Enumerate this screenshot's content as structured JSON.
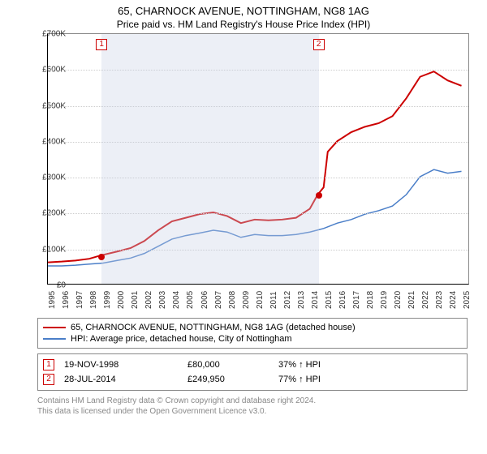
{
  "title": "65, CHARNOCK AVENUE, NOTTINGHAM, NG8 1AG",
  "subtitle": "Price paid vs. HM Land Registry's House Price Index (HPI)",
  "chart": {
    "type": "line",
    "x_years": [
      1995,
      1996,
      1997,
      1998,
      1999,
      2000,
      2001,
      2002,
      2003,
      2004,
      2005,
      2006,
      2007,
      2008,
      2009,
      2010,
      2011,
      2012,
      2013,
      2014,
      2015,
      2016,
      2017,
      2018,
      2019,
      2020,
      2021,
      2022,
      2023,
      2024,
      2025
    ],
    "xlim": [
      1995,
      2025.5
    ],
    "ylim": [
      0,
      700000
    ],
    "ytick_step": 100000,
    "ytick_labels": [
      "£0",
      "£100K",
      "£200K",
      "£300K",
      "£400K",
      "£500K",
      "£600K",
      "£700K"
    ],
    "background_color": "#ffffff",
    "grid_color": "#cccccc",
    "series": [
      {
        "name": "price_paid",
        "label": "65, CHARNOCK AVENUE, NOTTINGHAM, NG8 1AG (detached house)",
        "color": "#cc0000",
        "line_width": 2,
        "points": [
          [
            1995,
            60000
          ],
          [
            1996,
            62000
          ],
          [
            1997,
            65000
          ],
          [
            1998,
            70000
          ],
          [
            1998.88,
            80000
          ],
          [
            2000,
            90000
          ],
          [
            2001,
            100000
          ],
          [
            2002,
            120000
          ],
          [
            2003,
            150000
          ],
          [
            2004,
            175000
          ],
          [
            2005,
            185000
          ],
          [
            2006,
            195000
          ],
          [
            2007,
            200000
          ],
          [
            2008,
            190000
          ],
          [
            2009,
            170000
          ],
          [
            2010,
            180000
          ],
          [
            2011,
            178000
          ],
          [
            2012,
            180000
          ],
          [
            2013,
            185000
          ],
          [
            2014,
            210000
          ],
          [
            2014.57,
            249950
          ],
          [
            2015,
            270000
          ],
          [
            2015.3,
            370000
          ],
          [
            2016,
            400000
          ],
          [
            2017,
            425000
          ],
          [
            2018,
            440000
          ],
          [
            2019,
            450000
          ],
          [
            2020,
            470000
          ],
          [
            2021,
            520000
          ],
          [
            2022,
            580000
          ],
          [
            2023,
            595000
          ],
          [
            2024,
            570000
          ],
          [
            2025,
            555000
          ]
        ]
      },
      {
        "name": "hpi",
        "label": "HPI: Average price, detached house, City of Nottingham",
        "color": "#4a7ec8",
        "line_width": 1.5,
        "points": [
          [
            1995,
            50000
          ],
          [
            1996,
            50000
          ],
          [
            1997,
            52000
          ],
          [
            1998,
            55000
          ],
          [
            1999,
            58000
          ],
          [
            2000,
            65000
          ],
          [
            2001,
            72000
          ],
          [
            2002,
            85000
          ],
          [
            2003,
            105000
          ],
          [
            2004,
            125000
          ],
          [
            2005,
            135000
          ],
          [
            2006,
            142000
          ],
          [
            2007,
            150000
          ],
          [
            2008,
            145000
          ],
          [
            2009,
            130000
          ],
          [
            2010,
            138000
          ],
          [
            2011,
            135000
          ],
          [
            2012,
            135000
          ],
          [
            2013,
            138000
          ],
          [
            2014,
            145000
          ],
          [
            2015,
            155000
          ],
          [
            2016,
            170000
          ],
          [
            2017,
            180000
          ],
          [
            2018,
            195000
          ],
          [
            2019,
            205000
          ],
          [
            2020,
            218000
          ],
          [
            2021,
            250000
          ],
          [
            2022,
            300000
          ],
          [
            2023,
            320000
          ],
          [
            2024,
            310000
          ],
          [
            2025,
            315000
          ]
        ]
      }
    ],
    "sale_markers": [
      {
        "idx": "1",
        "year": 1998.88,
        "value": 80000
      },
      {
        "idx": "2",
        "year": 2014.57,
        "value": 249950
      }
    ],
    "shaded_band": {
      "from_year": 1998.88,
      "to_year": 2014.57,
      "color": "rgba(200,210,230,0.35)"
    }
  },
  "legend": {
    "items": [
      {
        "color": "#cc0000",
        "label_ref": "chart.series.0.label"
      },
      {
        "color": "#4a7ec8",
        "label_ref": "chart.series.1.label"
      }
    ]
  },
  "sales_table": {
    "rows": [
      {
        "idx": "1",
        "date": "19-NOV-1998",
        "price": "£80,000",
        "pct": "37% ↑ HPI"
      },
      {
        "idx": "2",
        "date": "28-JUL-2014",
        "price": "£249,950",
        "pct": "77% ↑ HPI"
      }
    ]
  },
  "footnote_line1": "Contains HM Land Registry data © Crown copyright and database right 2024.",
  "footnote_line2": "This data is licensed under the Open Government Licence v3.0."
}
